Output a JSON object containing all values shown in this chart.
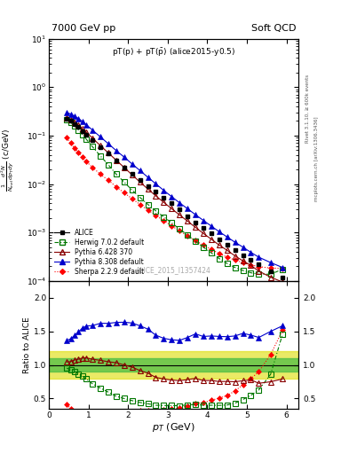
{
  "title_left": "7000 GeV pp",
  "title_right": "Soft QCD",
  "plot_title": "pT(p) + pT($\\bar{\\rm p}$) (alice2015-y0.5)",
  "ylabel_main": "$\\frac{1}{N_{\\rm inel}}\\frac{d^2N}{dp_{\\rm T}dy}$ (c/GeV)",
  "ylabel_ratio": "Ratio to ALICE",
  "xlabel": "$p_T$ (GeV)",
  "watermark": "ALICE_2015_I1357424",
  "right_label_top": "Rivet 3.1.10, ≥ 600k events",
  "right_label_bottom": "mcplots.cern.ch [arXiv:1306.3436]",
  "xlim": [
    0.0,
    6.3
  ],
  "ylim_main": [
    0.0001,
    10
  ],
  "ylim_ratio": [
    0.35,
    2.25
  ],
  "ratio_yticks": [
    0.5,
    1.0,
    1.5,
    2.0
  ],
  "alice_x": [
    0.45,
    0.55,
    0.65,
    0.75,
    0.85,
    0.95,
    1.1,
    1.3,
    1.5,
    1.7,
    1.9,
    2.1,
    2.3,
    2.5,
    2.7,
    2.9,
    3.1,
    3.3,
    3.5,
    3.7,
    3.9,
    4.1,
    4.3,
    4.5,
    4.7,
    4.9,
    5.1,
    5.3,
    5.6,
    5.9
  ],
  "alice_y": [
    0.22,
    0.2,
    0.175,
    0.15,
    0.125,
    0.105,
    0.082,
    0.058,
    0.042,
    0.03,
    0.022,
    0.016,
    0.012,
    0.009,
    0.007,
    0.0053,
    0.004,
    0.003,
    0.0022,
    0.0016,
    0.00125,
    0.00095,
    0.00073,
    0.00057,
    0.00044,
    0.00034,
    0.00027,
    0.00022,
    0.00016,
    0.00012
  ],
  "alice_yerr": [
    0.008,
    0.007,
    0.006,
    0.005,
    0.005,
    0.004,
    0.003,
    0.002,
    0.0015,
    0.001,
    0.0008,
    0.0006,
    0.0004,
    0.0003,
    0.00022,
    0.00016,
    0.00012,
    9e-05,
    7e-05,
    5e-05,
    4e-05,
    3e-05,
    2.5e-05,
    2e-05,
    1.5e-05,
    1.2e-05,
    1e-05,
    8e-06,
    6e-06,
    5e-06
  ],
  "herwig_x": [
    0.45,
    0.55,
    0.65,
    0.75,
    0.85,
    0.95,
    1.1,
    1.3,
    1.5,
    1.7,
    1.9,
    2.1,
    2.3,
    2.5,
    2.7,
    2.9,
    3.1,
    3.3,
    3.5,
    3.7,
    3.9,
    4.1,
    4.3,
    4.5,
    4.7,
    4.9,
    5.1,
    5.3,
    5.6,
    5.9
  ],
  "herwig_y": [
    0.21,
    0.185,
    0.158,
    0.13,
    0.104,
    0.083,
    0.059,
    0.038,
    0.025,
    0.016,
    0.011,
    0.0075,
    0.0053,
    0.0038,
    0.0028,
    0.0021,
    0.00158,
    0.00118,
    0.00089,
    0.00066,
    0.0005,
    0.00038,
    0.00029,
    0.00023,
    0.00019,
    0.000165,
    0.000148,
    0.000138,
    0.000138,
    0.000175
  ],
  "pythia6_x": [
    0.45,
    0.55,
    0.65,
    0.75,
    0.85,
    0.95,
    1.1,
    1.3,
    1.5,
    1.7,
    1.9,
    2.1,
    2.3,
    2.5,
    2.7,
    2.9,
    3.1,
    3.3,
    3.5,
    3.7,
    3.9,
    4.1,
    4.3,
    4.5,
    4.7,
    4.9,
    5.1,
    5.3,
    5.6,
    5.9
  ],
  "pythia6_y": [
    0.23,
    0.21,
    0.188,
    0.163,
    0.138,
    0.116,
    0.089,
    0.062,
    0.044,
    0.031,
    0.022,
    0.0155,
    0.011,
    0.0079,
    0.0057,
    0.0042,
    0.0031,
    0.0023,
    0.00172,
    0.00128,
    0.00096,
    0.00073,
    0.00055,
    0.00043,
    0.00033,
    0.00026,
    0.00021,
    0.00016,
    0.00012,
    9.5e-05
  ],
  "pythia8_x": [
    0.45,
    0.55,
    0.65,
    0.75,
    0.85,
    0.95,
    1.1,
    1.3,
    1.5,
    1.7,
    1.9,
    2.1,
    2.3,
    2.5,
    2.7,
    2.9,
    3.1,
    3.3,
    3.5,
    3.7,
    3.9,
    4.1,
    4.3,
    4.5,
    4.7,
    4.9,
    5.1,
    5.3,
    5.6,
    5.9
  ],
  "pythia8_y": [
    0.3,
    0.278,
    0.252,
    0.224,
    0.194,
    0.166,
    0.13,
    0.094,
    0.068,
    0.049,
    0.036,
    0.026,
    0.019,
    0.0138,
    0.0101,
    0.0074,
    0.0055,
    0.0041,
    0.0031,
    0.00234,
    0.00178,
    0.00136,
    0.00104,
    0.00081,
    0.00063,
    0.0005,
    0.00039,
    0.00031,
    0.00024,
    0.00019
  ],
  "sherpa_x": [
    0.45,
    0.55,
    0.65,
    0.75,
    0.85,
    0.95,
    1.1,
    1.3,
    1.5,
    1.7,
    1.9,
    2.1,
    2.3,
    2.5,
    2.7,
    2.9,
    3.1,
    3.3,
    3.5,
    3.7,
    3.9,
    4.1,
    4.3,
    4.5,
    4.7,
    4.9,
    5.1,
    5.3,
    5.6,
    5.9
  ],
  "sherpa_y": [
    0.09,
    0.07,
    0.055,
    0.044,
    0.036,
    0.029,
    0.022,
    0.016,
    0.012,
    0.0088,
    0.0066,
    0.005,
    0.0038,
    0.0029,
    0.00225,
    0.00175,
    0.00137,
    0.00108,
    0.00085,
    0.00068,
    0.00055,
    0.00045,
    0.00037,
    0.00031,
    0.00027,
    0.00024,
    0.000215,
    0.000198,
    0.000185,
    0.000182
  ],
  "color_alice": "#000000",
  "color_herwig": "#007700",
  "color_pythia6": "#880000",
  "color_pythia8": "#0000cc",
  "color_sherpa": "#ff0000",
  "color_band_inner": "#44bb44",
  "color_band_outer": "#dddd00",
  "legend_labels": [
    "ALICE",
    "Herwig 7.0.2 default",
    "Pythia 6.428 370",
    "Pythia 8.308 default",
    "Sherpa 2.2.9 default"
  ],
  "bg_color": "#ffffff"
}
